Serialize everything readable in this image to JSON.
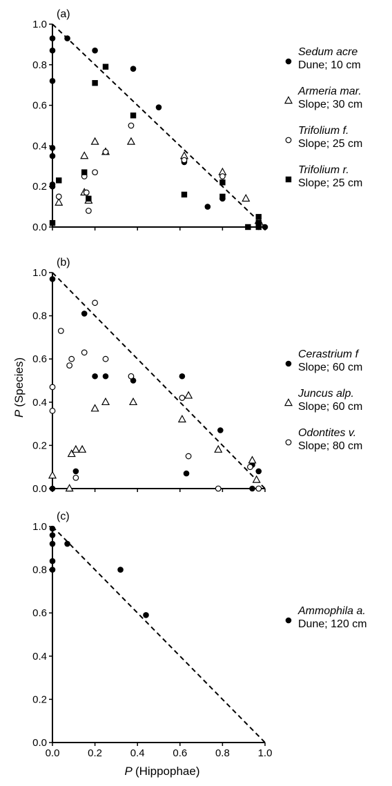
{
  "chart_data": [
    {
      "type": "scatter",
      "panel_label": "(a)",
      "xlim": [
        0,
        1
      ],
      "ylim": [
        0,
        1
      ],
      "xticks": [],
      "yticks": [
        "0.0",
        "0.2",
        "0.4",
        "0.6",
        "0.8",
        "1.0"
      ],
      "xlabel": "",
      "ylabel": "",
      "reference_line": {
        "style": "dashed",
        "from": [
          0,
          1
        ],
        "to": [
          1,
          0
        ]
      },
      "legend_position": "right",
      "series": [
        {
          "name": "Sedum acre",
          "site": "Dune; 10 cm",
          "marker": "filled-circle",
          "points": [
            [
              0,
              0.93
            ],
            [
              0,
              0.87
            ],
            [
              0,
              0.72
            ],
            [
              0,
              0.39
            ],
            [
              0,
              0.35
            ],
            [
              0,
              0.21
            ],
            [
              0,
              0.2
            ],
            [
              0.07,
              0.93
            ],
            [
              0.2,
              0.87
            ],
            [
              0.38,
              0.78
            ],
            [
              0.5,
              0.59
            ],
            [
              0.62,
              0.32
            ],
            [
              0.73,
              0.1
            ],
            [
              0.8,
              0.14
            ],
            [
              0.97,
              0
            ],
            [
              1,
              0
            ]
          ]
        },
        {
          "name": "Armeria mar.",
          "site": "Slope; 30 cm",
          "marker": "open-triangle",
          "points": [
            [
              0.03,
              0.12
            ],
            [
              0.15,
              0.35
            ],
            [
              0.15,
              0.17
            ],
            [
              0.17,
              0.13
            ],
            [
              0.2,
              0.42
            ],
            [
              0.25,
              0.37
            ],
            [
              0.37,
              0.42
            ],
            [
              0.62,
              0.35
            ],
            [
              0.8,
              0.27
            ],
            [
              0.91,
              0.14
            ],
            [
              0.97,
              0.03
            ]
          ]
        },
        {
          "name": "Trifolium f.",
          "site": "Slope; 25 cm",
          "marker": "open-circle",
          "points": [
            [
              0.03,
              0.15
            ],
            [
              0.15,
              0.25
            ],
            [
              0.16,
              0.17
            ],
            [
              0.17,
              0.08
            ],
            [
              0.2,
              0.27
            ],
            [
              0.25,
              0.37
            ],
            [
              0.37,
              0.5
            ],
            [
              0.62,
              0.33
            ],
            [
              0.8,
              0.25
            ],
            [
              0.97,
              0.02
            ]
          ]
        },
        {
          "name": "Trifolium r.",
          "site": "Slope; 25 cm",
          "marker": "filled-square",
          "points": [
            [
              0,
              0.02
            ],
            [
              0.03,
              0.23
            ],
            [
              0.15,
              0.27
            ],
            [
              0.17,
              0.14
            ],
            [
              0.2,
              0.71
            ],
            [
              0.25,
              0.79
            ],
            [
              0.38,
              0.55
            ],
            [
              0.62,
              0.16
            ],
            [
              0.8,
              0.22
            ],
            [
              0.8,
              0.15
            ],
            [
              0.92,
              0
            ],
            [
              0.97,
              0.05
            ],
            [
              0.97,
              0.02
            ],
            [
              0.97,
              0
            ]
          ]
        }
      ]
    },
    {
      "type": "scatter",
      "panel_label": "(b)",
      "xlim": [
        0,
        1
      ],
      "ylim": [
        0,
        1
      ],
      "xticks": [],
      "yticks": [
        "0.0",
        "0.2",
        "0.4",
        "0.6",
        "0.8",
        "1.0"
      ],
      "xlabel": "",
      "ylabel": "P (Species)",
      "reference_line": {
        "style": "dashed",
        "from": [
          0,
          1
        ],
        "to": [
          1,
          0
        ]
      },
      "legend_position": "right",
      "series": [
        {
          "name": "Cerastrium f",
          "site": "Slope; 60 cm",
          "marker": "filled-circle",
          "points": [
            [
              0,
              0.97
            ],
            [
              0,
              0
            ],
            [
              0.11,
              0.08
            ],
            [
              0.15,
              0.81
            ],
            [
              0.2,
              0.52
            ],
            [
              0.25,
              0.52
            ],
            [
              0.38,
              0.5
            ],
            [
              0.61,
              0.52
            ],
            [
              0.63,
              0.07
            ],
            [
              0.79,
              0.27
            ],
            [
              0.94,
              0.11
            ],
            [
              0.94,
              0
            ],
            [
              0.97,
              0.08
            ]
          ]
        },
        {
          "name": "Juncus alp.",
          "site": "Slope; 60 cm",
          "marker": "open-triangle",
          "points": [
            [
              0,
              0.06
            ],
            [
              0.08,
              0
            ],
            [
              0.09,
              0.16
            ],
            [
              0.11,
              0.18
            ],
            [
              0.14,
              0.18
            ],
            [
              0.2,
              0.37
            ],
            [
              0.25,
              0.4
            ],
            [
              0.38,
              0.4
            ],
            [
              0.61,
              0.32
            ],
            [
              0.64,
              0.43
            ],
            [
              0.78,
              0.18
            ],
            [
              0.94,
              0.13
            ],
            [
              0.96,
              0.04
            ]
          ]
        },
        {
          "name": "Odontites v.",
          "site": "Slope; 80 cm",
          "marker": "open-circle",
          "points": [
            [
              0,
              0.47
            ],
            [
              0,
              0.36
            ],
            [
              0.04,
              0.73
            ],
            [
              0.08,
              0.57
            ],
            [
              0.09,
              0.6
            ],
            [
              0.11,
              0.05
            ],
            [
              0.15,
              0.63
            ],
            [
              0.2,
              0.86
            ],
            [
              0.25,
              0.6
            ],
            [
              0.37,
              0.52
            ],
            [
              0.61,
              0.42
            ],
            [
              0.64,
              0.15
            ],
            [
              0.78,
              0
            ],
            [
              0.93,
              0.1
            ],
            [
              0.97,
              0
            ]
          ]
        }
      ]
    },
    {
      "type": "scatter",
      "panel_label": "(c)",
      "xlim": [
        0,
        1
      ],
      "ylim": [
        0,
        1
      ],
      "xticks": [
        "0.0",
        "0.2",
        "0.4",
        "0.6",
        "0.8",
        "1.0"
      ],
      "yticks": [
        "0.0",
        "0.2",
        "0.4",
        "0.6",
        "0.8",
        "1.0"
      ],
      "xlabel": "P (Hippophae)",
      "ylabel": "",
      "reference_line": {
        "style": "dashed",
        "from": [
          0,
          1
        ],
        "to": [
          1,
          0
        ]
      },
      "legend_position": "right",
      "series": [
        {
          "name": "Ammophila a.",
          "site": "Dune; 120 cm",
          "marker": "filled-circle",
          "points": [
            [
              0,
              0.99
            ],
            [
              0,
              0.96
            ],
            [
              0,
              0.92
            ],
            [
              0,
              0.84
            ],
            [
              0,
              0.8
            ],
            [
              0.07,
              0.92
            ],
            [
              0.32,
              0.8
            ],
            [
              0.44,
              0.59
            ]
          ]
        }
      ]
    }
  ]
}
